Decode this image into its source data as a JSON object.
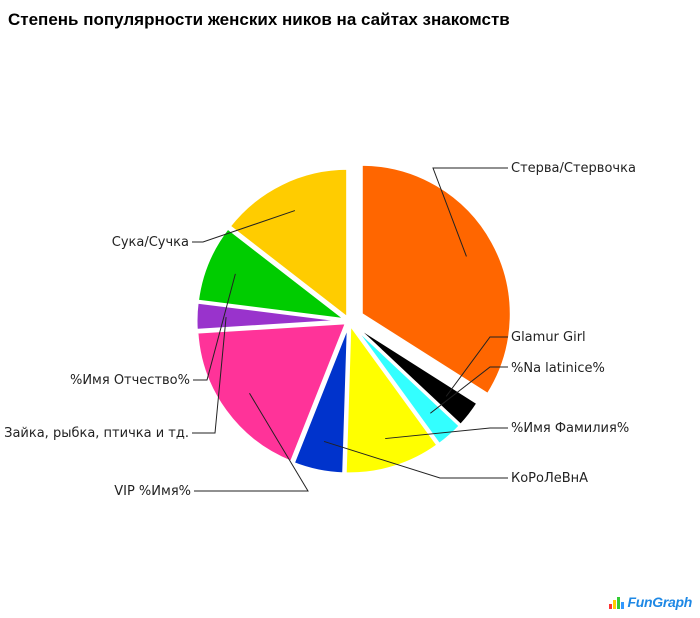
{
  "chart_data": {
    "type": "pie",
    "title": "Степень популярности женских ников на сайтах знакомств",
    "slices": [
      {
        "label": "Стерва/Стервочка",
        "value": 34.0,
        "color": "#ff6600"
      },
      {
        "label": "Glamur Girl",
        "value": 3.0,
        "color": "#000000"
      },
      {
        "label": "%Na latinice%",
        "value": 3.0,
        "color": "#33ffff"
      },
      {
        "label": "%Имя Фамилия%",
        "value": 10.5,
        "color": "#ffff00"
      },
      {
        "label": "КоРоЛеВнА",
        "value": 5.5,
        "color": "#0033cc"
      },
      {
        "label": "VIP %Имя%",
        "value": 18.0,
        "color": "#ff3399"
      },
      {
        "label": "Зайка, рыбка, птичка и тд.",
        "value": 3.0,
        "color": "#9933cc"
      },
      {
        "label": "%Имя Отчество%",
        "value": 8.5,
        "color": "#00cc00"
      },
      {
        "label": "Сука/Сучка",
        "value": 14.5,
        "color": "#ffcc00"
      }
    ],
    "exploded_slice": "Стерва/Стервочка",
    "start_angle_deg": 90,
    "direction": "clockwise",
    "legend": "none"
  },
  "brand": {
    "text": "FunGraph",
    "bar_colors": [
      "#ff3333",
      "#ffcc00",
      "#33cc33",
      "#3399ff"
    ]
  }
}
